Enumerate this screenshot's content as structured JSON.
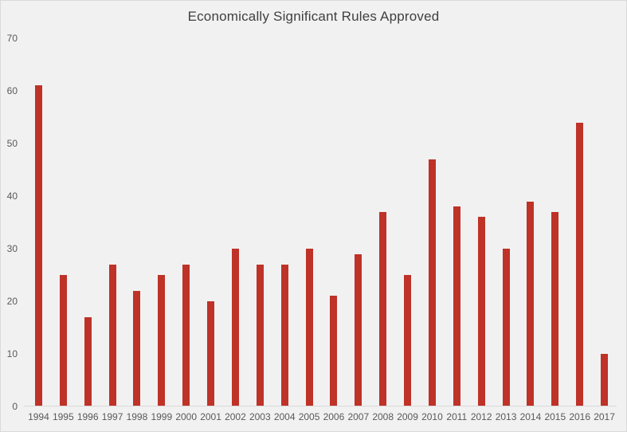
{
  "chart_data": {
    "type": "bar",
    "title": "Economically Significant Rules Approved",
    "categories": [
      "1994",
      "1995",
      "1996",
      "1997",
      "1998",
      "1999",
      "2000",
      "2001",
      "2002",
      "2003",
      "2004",
      "2005",
      "2006",
      "2007",
      "2008",
      "2009",
      "2010",
      "2011",
      "2012",
      "2013",
      "2014",
      "2015",
      "2016",
      "2017"
    ],
    "values": [
      61,
      25,
      17,
      27,
      22,
      25,
      27,
      20,
      30,
      27,
      27,
      30,
      21,
      29,
      37,
      25,
      47,
      38,
      36,
      30,
      39,
      37,
      54,
      10
    ],
    "xlabel": "",
    "ylabel": "",
    "ylim": [
      0,
      70
    ],
    "yticks": [
      0,
      10,
      20,
      30,
      40,
      50,
      60,
      70
    ],
    "grid": false,
    "legend": false,
    "colors": {
      "bar": "#BE3228",
      "background": "#F1F1F1",
      "border": "#D9D9D9",
      "axis_line": "#D9D9D9",
      "title_text": "#404040",
      "tick_text": "#595959"
    }
  }
}
